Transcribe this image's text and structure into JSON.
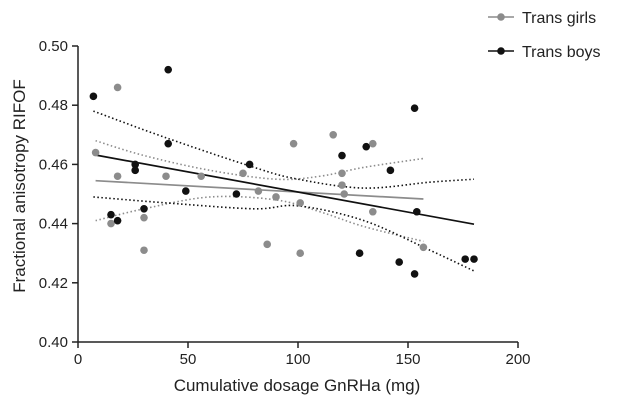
{
  "chart_data": {
    "type": "scatter",
    "title": "",
    "xlabel": "Cumulative dosage GnRHa (mg)",
    "ylabel": "Fractional anisotropy RIFOF",
    "xlim": [
      0,
      200
    ],
    "ylim": [
      0.4,
      0.5
    ],
    "xticks": [
      0,
      50,
      100,
      150,
      200
    ],
    "yticks": [
      0.4,
      0.42,
      0.44,
      0.46,
      0.48,
      0.5
    ],
    "xtick_labels": [
      "0",
      "50",
      "100",
      "150",
      "200"
    ],
    "ytick_labels": [
      "0.40",
      "0.42",
      "0.44",
      "0.46",
      "0.48",
      "0.50"
    ],
    "legend_position": "top-right",
    "grid": false,
    "series": [
      {
        "name": "Trans girls",
        "color": "#8c8c8c",
        "points": [
          [
            8,
            0.464
          ],
          [
            15,
            0.44
          ],
          [
            18,
            0.456
          ],
          [
            18,
            0.486
          ],
          [
            26,
            0.46
          ],
          [
            30,
            0.431
          ],
          [
            30,
            0.442
          ],
          [
            40,
            0.456
          ],
          [
            56,
            0.456
          ],
          [
            75,
            0.457
          ],
          [
            82,
            0.451
          ],
          [
            86,
            0.433
          ],
          [
            90,
            0.449
          ],
          [
            98,
            0.467
          ],
          [
            101,
            0.43
          ],
          [
            101,
            0.447
          ],
          [
            116,
            0.47
          ],
          [
            120,
            0.457
          ],
          [
            120,
            0.453
          ],
          [
            121,
            0.45
          ],
          [
            134,
            0.467
          ],
          [
            134,
            0.444
          ],
          [
            157,
            0.432
          ]
        ],
        "fit": {
          "x": [
            8,
            157
          ],
          "y": [
            0.4545,
            0.4483
          ]
        },
        "ci_upper": {
          "x": [
            8,
            30,
            60,
            90,
            110,
            130,
            157
          ],
          "y": [
            0.468,
            0.463,
            0.458,
            0.455,
            0.456,
            0.459,
            0.462
          ]
        },
        "ci_lower": {
          "x": [
            8,
            30,
            60,
            90,
            110,
            130,
            157
          ],
          "y": [
            0.441,
            0.445,
            0.449,
            0.448,
            0.444,
            0.439,
            0.434
          ]
        }
      },
      {
        "name": "Trans boys",
        "color": "#111111",
        "points": [
          [
            7,
            0.483
          ],
          [
            15,
            0.443
          ],
          [
            18,
            0.441
          ],
          [
            26,
            0.46
          ],
          [
            26,
            0.458
          ],
          [
            30,
            0.445
          ],
          [
            41,
            0.492
          ],
          [
            41,
            0.467
          ],
          [
            49,
            0.451
          ],
          [
            72,
            0.45
          ],
          [
            78,
            0.46
          ],
          [
            120,
            0.463
          ],
          [
            128,
            0.43
          ],
          [
            131,
            0.466
          ],
          [
            142,
            0.458
          ],
          [
            146,
            0.427
          ],
          [
            153,
            0.479
          ],
          [
            153,
            0.423
          ],
          [
            154,
            0.444
          ],
          [
            176,
            0.428
          ],
          [
            180,
            0.428
          ]
        ],
        "fit": {
          "x": [
            7,
            180
          ],
          "y": [
            0.4633,
            0.4398
          ]
        },
        "ci_upper": {
          "x": [
            7,
            40,
            80,
            100,
            130,
            160,
            180
          ],
          "y": [
            0.478,
            0.469,
            0.459,
            0.455,
            0.452,
            0.454,
            0.455
          ]
        },
        "ci_lower": {
          "x": [
            7,
            40,
            80,
            100,
            130,
            160,
            180
          ],
          "y": [
            0.449,
            0.447,
            0.445,
            0.446,
            0.441,
            0.431,
            0.424
          ]
        }
      }
    ]
  }
}
